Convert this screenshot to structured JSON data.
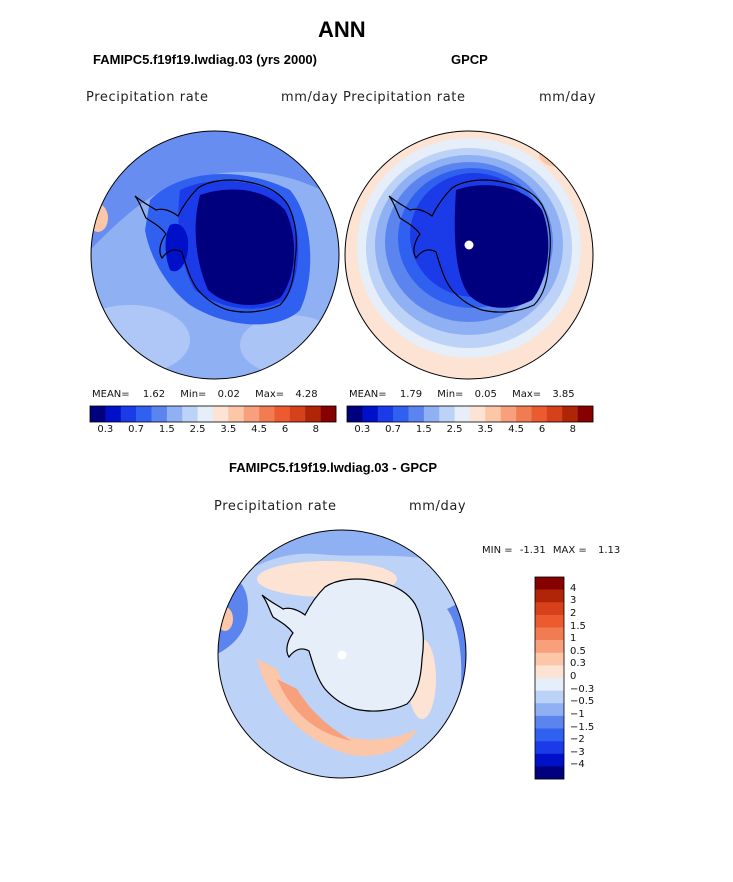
{
  "figure": {
    "title": "ANN"
  },
  "panels": [
    {
      "id": "model",
      "case_title": "FAMIPC5.f19f19.lwdiag.03 (yrs 2000)",
      "variable": "Precipitation rate",
      "units": "mm/day",
      "stats": {
        "mean_label": "MEAN=",
        "mean": "1.62",
        "min_label": "Min=",
        "min": "0.02",
        "max_label": "Max=",
        "max": "4.28"
      }
    },
    {
      "id": "obs",
      "case_title": "GPCP",
      "variable": "Precipitation rate",
      "units": "mm/day",
      "stats": {
        "mean_label": "MEAN=",
        "mean": "1.79",
        "min_label": "Min=",
        "min": "0.05",
        "max_label": "Max=",
        "max": "3.85"
      }
    }
  ],
  "abs_colorbar": {
    "ticks": [
      "0.3",
      "0.7",
      "1.5",
      "2.5",
      "3.5",
      "4.5",
      "6",
      "8"
    ],
    "colors": [
      "#00007f",
      "#0010c8",
      "#1c3be8",
      "#3060f0",
      "#5b84ee",
      "#8fb0f3",
      "#bcd2f6",
      "#e5eef9",
      "#fde3d3",
      "#fcc6a8",
      "#f8a07c",
      "#f27c52",
      "#ec5a30",
      "#d6401a",
      "#b02408",
      "#860000"
    ]
  },
  "diff": {
    "title": "FAMIPC5.f19f19.lwdiag.03 - GPCP",
    "variable": "Precipitation rate",
    "units": "mm/day",
    "min_label": "MIN =",
    "min": "-1.31",
    "max_label": "MAX =",
    "max": "1.13",
    "colorbar_ticks": [
      "4",
      "3",
      "2",
      "1.5",
      "1",
      "0.5",
      "0.3",
      "0",
      "−0.3",
      "−0.5",
      "−1",
      "−1.5",
      "−2",
      "−3",
      "−4"
    ],
    "colorbar_colors": [
      "#860000",
      "#b02408",
      "#d6401a",
      "#ec5a30",
      "#f27c52",
      "#f8a07c",
      "#fcc6a8",
      "#fde3d3",
      "#e5eef9",
      "#bcd2f6",
      "#8fb0f3",
      "#5b84ee",
      "#3060f0",
      "#1c3be8",
      "#0010c8",
      "#00007f"
    ]
  },
  "colors": {
    "ocean_light": "#8fb0f3",
    "ocean_mid": "#5b84ee",
    "ocean_pale": "#bcd2f6",
    "continent_dark": "#00007f",
    "continent_mid": "#0010c8",
    "diff_land": "#e5eef9",
    "diff_pos": "#fcc6a8",
    "diff_pos_strong": "#f8a07c"
  }
}
